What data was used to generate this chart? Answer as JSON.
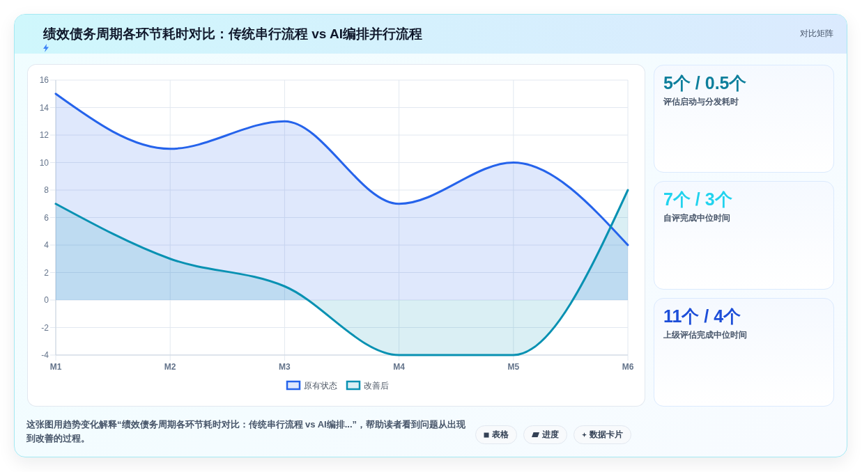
{
  "chart_data": [
    {
      "type": "area",
      "title": "绩效债务周期各环节耗时对比：传统串行流程 vs AI编排并行流程",
      "categories": [
        "M1",
        "M2",
        "M3",
        "M4",
        "M5",
        "M6"
      ],
      "series": [
        {
          "name": "原有状态",
          "color": "#2563eb",
          "values": [
            15,
            11,
            13,
            7,
            10,
            4
          ]
        },
        {
          "name": "改善后",
          "color": "#0891b2",
          "values": [
            7,
            3,
            1,
            -4,
            -4,
            8
          ]
        }
      ],
      "ylim": [
        -4,
        16
      ],
      "yticks": [
        -4,
        -2,
        0,
        2,
        4,
        6,
        8,
        10,
        12,
        14,
        16
      ],
      "grid": true,
      "legend": "bottom",
      "annotations": [
        "对比矩阵",
        "这张图用趋势变化解释“绩效债务周期各环节耗时对比：传统串行流程 vs AI编排...”，帮助读者看到问题从出现到改善的过程。",
        "表格",
        "进度",
        "数据卡片"
      ]
    },
    {
      "type": "other",
      "title": "5个 / 0.5个",
      "subtitle": "评估启动与分发耗时",
      "color": "#0e7f9c"
    },
    {
      "type": "other",
      "title": "7个 / 3个",
      "subtitle": "自评完成中位时间",
      "color": "#22d3ee"
    },
    {
      "type": "other",
      "title": "11个 / 4个",
      "subtitle": "上级评估完成中位时间",
      "color": "#1d4ed8"
    }
  ]
}
